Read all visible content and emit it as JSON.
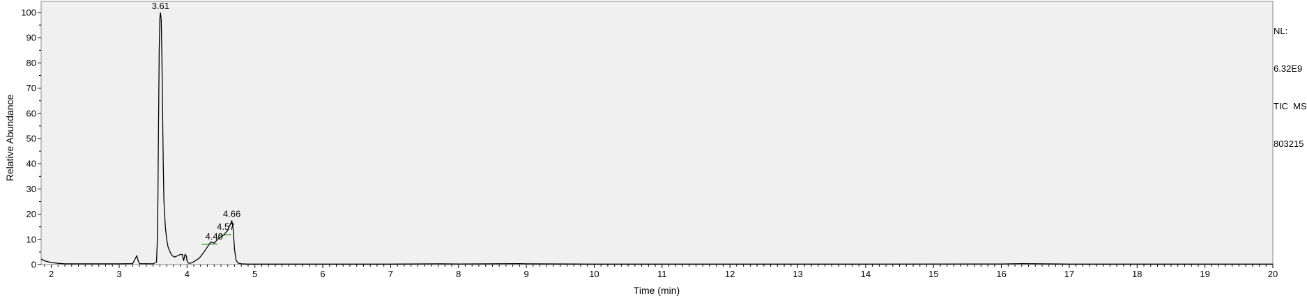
{
  "chart_data": {
    "type": "line",
    "xlabel": "Time (min)",
    "ylabel": "Relative Abundance",
    "xlim": [
      1.85,
      20
    ],
    "ylim": [
      0,
      100
    ],
    "x_ticks": [
      "2",
      "3",
      "4",
      "5",
      "6",
      "7",
      "8",
      "9",
      "10",
      "11",
      "12",
      "13",
      "14",
      "15",
      "16",
      "17",
      "18",
      "19",
      "20"
    ],
    "y_ticks": [
      "0",
      "10",
      "20",
      "30",
      "40",
      "50",
      "60",
      "70",
      "80",
      "90",
      "100"
    ],
    "grid": false,
    "colors": {
      "trace": "#000000",
      "baseline": "#1a8a1a",
      "plot_bg": "#f0f0f0"
    },
    "peak_labels": [
      {
        "x": 3.61,
        "y": 100,
        "label": "3.61"
      },
      {
        "x": 4.4,
        "y": 8.5,
        "label": "4.40"
      },
      {
        "x": 4.57,
        "y": 12.5,
        "label": "4.57"
      },
      {
        "x": 4.66,
        "y": 17.5,
        "label": "4.66"
      }
    ],
    "series": [
      {
        "x": [
          1.85,
          1.9,
          2.0,
          2.1,
          2.2,
          3.0,
          3.2,
          3.24,
          3.26,
          3.28,
          3.3,
          3.5,
          3.55,
          3.56,
          3.57,
          3.58,
          3.59,
          3.6,
          3.61,
          3.62,
          3.63,
          3.64,
          3.65,
          3.66,
          3.68,
          3.7,
          3.72,
          3.75,
          3.78,
          3.82,
          3.86,
          3.9,
          3.93,
          3.95,
          3.97,
          3.99,
          4.0,
          4.02,
          4.04,
          4.08,
          4.12,
          4.18,
          4.25,
          4.3,
          4.35,
          4.4,
          4.45,
          4.5,
          4.55,
          4.58,
          4.6,
          4.62,
          4.64,
          4.66,
          4.68,
          4.7,
          4.72,
          4.75,
          4.8,
          4.9,
          5.1,
          6.0,
          7.0,
          7.7,
          8.0,
          8.9,
          9.0,
          10.0,
          12.0,
          14.0,
          16.0,
          16.3,
          17.0,
          18.0,
          19.0,
          20.0
        ],
        "y": [
          2.2,
          1.5,
          0.8,
          0.5,
          0.3,
          0.3,
          0.4,
          2.5,
          3.5,
          1.5,
          0.4,
          0.3,
          1.0,
          8,
          25,
          55,
          85,
          98,
          100,
          97,
          82,
          60,
          40,
          25,
          15,
          10,
          7,
          5,
          3.5,
          3.0,
          3.5,
          4.0,
          4.0,
          1.5,
          4.0,
          3.5,
          1.5,
          0.6,
          0.5,
          0.8,
          1.5,
          2.5,
          5,
          7,
          9,
          8.5,
          10,
          11,
          12,
          13,
          13.5,
          15,
          16,
          17.5,
          14,
          6,
          2,
          0.6,
          0.3,
          0.2,
          0.2,
          0.2,
          0.2,
          0.3,
          0.25,
          0.4,
          0.3,
          0.2,
          0.2,
          0.2,
          0.25,
          0.4,
          0.2,
          0.2,
          0.2,
          0.2
        ]
      }
    ],
    "integration_baselines": [
      {
        "x": [
          4.22,
          4.45
        ],
        "y": [
          8.0,
          8.2
        ]
      },
      {
        "x": [
          4.47,
          4.65
        ],
        "y": [
          11.5,
          12.0
        ]
      }
    ]
  },
  "info_panel": {
    "nl_label": "NL:",
    "nl_value": "6.32E9",
    "filter": "TIC  MS",
    "sample": "803215"
  }
}
